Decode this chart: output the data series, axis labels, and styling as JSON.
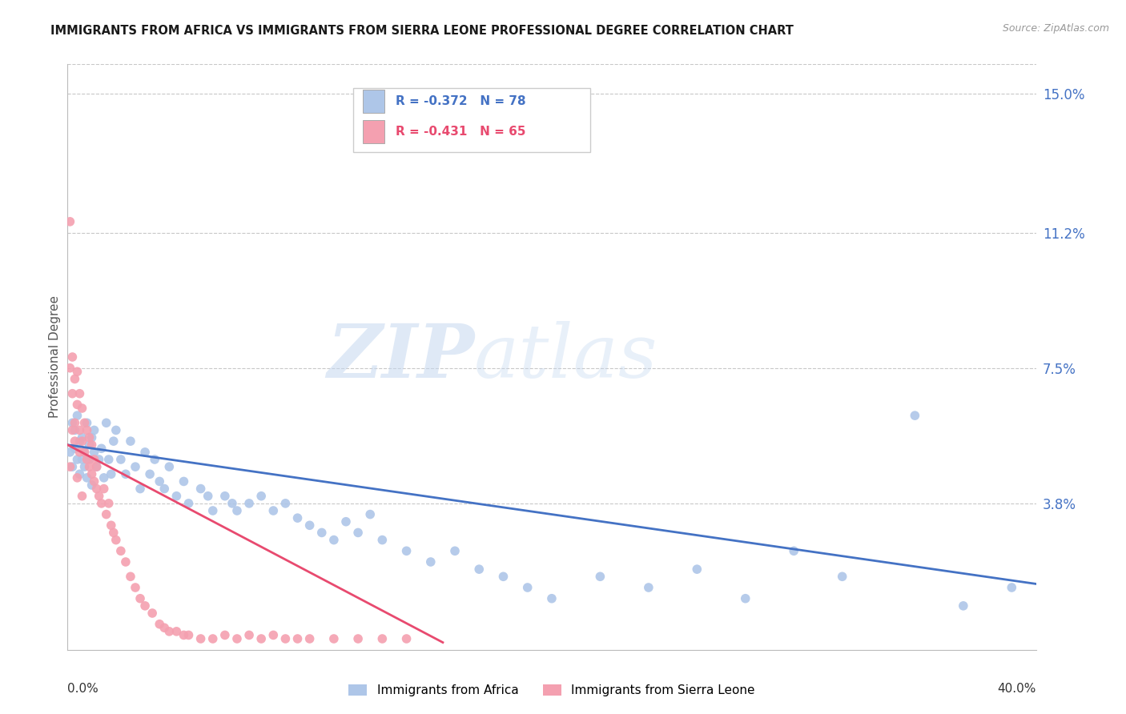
{
  "title": "IMMIGRANTS FROM AFRICA VS IMMIGRANTS FROM SIERRA LEONE PROFESSIONAL DEGREE CORRELATION CHART",
  "source": "Source: ZipAtlas.com",
  "ylabel": "Professional Degree",
  "right_ytick_labels": [
    "15.0%",
    "11.2%",
    "7.5%",
    "3.8%"
  ],
  "right_ytick_values": [
    0.15,
    0.112,
    0.075,
    0.038
  ],
  "xlim": [
    0.0,
    0.4
  ],
  "ylim": [
    -0.002,
    0.158
  ],
  "color_africa": "#aec6e8",
  "color_sierraleone": "#f4a0b0",
  "trendline_color_africa": "#4472c4",
  "trendline_color_sierraleone": "#e84a6f",
  "background_color": "#ffffff",
  "grid_color": "#c8c8c8",
  "right_axis_label_color": "#4472c4",
  "title_color": "#1a1a1a",
  "watermark_zip": "ZIP",
  "watermark_atlas": "atlas",
  "africa_x": [
    0.001,
    0.002,
    0.002,
    0.003,
    0.003,
    0.004,
    0.004,
    0.005,
    0.005,
    0.006,
    0.006,
    0.007,
    0.007,
    0.008,
    0.008,
    0.009,
    0.009,
    0.01,
    0.01,
    0.011,
    0.011,
    0.012,
    0.013,
    0.014,
    0.015,
    0.016,
    0.017,
    0.018,
    0.019,
    0.02,
    0.022,
    0.024,
    0.026,
    0.028,
    0.03,
    0.032,
    0.034,
    0.036,
    0.038,
    0.04,
    0.042,
    0.045,
    0.048,
    0.05,
    0.055,
    0.058,
    0.06,
    0.065,
    0.068,
    0.07,
    0.075,
    0.08,
    0.085,
    0.09,
    0.095,
    0.1,
    0.105,
    0.11,
    0.115,
    0.12,
    0.125,
    0.13,
    0.14,
    0.15,
    0.16,
    0.17,
    0.18,
    0.19,
    0.2,
    0.22,
    0.24,
    0.26,
    0.28,
    0.3,
    0.32,
    0.35,
    0.37,
    0.39
  ],
  "africa_y": [
    0.052,
    0.048,
    0.06,
    0.053,
    0.058,
    0.05,
    0.062,
    0.046,
    0.055,
    0.05,
    0.056,
    0.052,
    0.048,
    0.06,
    0.045,
    0.054,
    0.05,
    0.056,
    0.043,
    0.052,
    0.058,
    0.048,
    0.05,
    0.053,
    0.045,
    0.06,
    0.05,
    0.046,
    0.055,
    0.058,
    0.05,
    0.046,
    0.055,
    0.048,
    0.042,
    0.052,
    0.046,
    0.05,
    0.044,
    0.042,
    0.048,
    0.04,
    0.044,
    0.038,
    0.042,
    0.04,
    0.036,
    0.04,
    0.038,
    0.036,
    0.038,
    0.04,
    0.036,
    0.038,
    0.034,
    0.032,
    0.03,
    0.028,
    0.033,
    0.03,
    0.035,
    0.028,
    0.025,
    0.022,
    0.025,
    0.02,
    0.018,
    0.015,
    0.012,
    0.018,
    0.015,
    0.02,
    0.012,
    0.025,
    0.018,
    0.062,
    0.01,
    0.015
  ],
  "sl_x": [
    0.001,
    0.001,
    0.002,
    0.002,
    0.003,
    0.003,
    0.004,
    0.004,
    0.005,
    0.005,
    0.006,
    0.006,
    0.007,
    0.007,
    0.008,
    0.008,
    0.009,
    0.009,
    0.01,
    0.01,
    0.011,
    0.011,
    0.012,
    0.012,
    0.013,
    0.014,
    0.015,
    0.016,
    0.017,
    0.018,
    0.019,
    0.02,
    0.022,
    0.024,
    0.026,
    0.028,
    0.03,
    0.032,
    0.035,
    0.038,
    0.04,
    0.042,
    0.045,
    0.048,
    0.05,
    0.055,
    0.06,
    0.065,
    0.07,
    0.075,
    0.08,
    0.085,
    0.09,
    0.095,
    0.1,
    0.11,
    0.12,
    0.13,
    0.14,
    0.001,
    0.002,
    0.003,
    0.004,
    0.005,
    0.006
  ],
  "sl_y": [
    0.115,
    0.075,
    0.068,
    0.078,
    0.06,
    0.072,
    0.065,
    0.074,
    0.058,
    0.068,
    0.055,
    0.064,
    0.052,
    0.06,
    0.05,
    0.058,
    0.048,
    0.056,
    0.046,
    0.054,
    0.044,
    0.05,
    0.042,
    0.048,
    0.04,
    0.038,
    0.042,
    0.035,
    0.038,
    0.032,
    0.03,
    0.028,
    0.025,
    0.022,
    0.018,
    0.015,
    0.012,
    0.01,
    0.008,
    0.005,
    0.004,
    0.003,
    0.003,
    0.002,
    0.002,
    0.001,
    0.001,
    0.002,
    0.001,
    0.002,
    0.001,
    0.002,
    0.001,
    0.001,
    0.001,
    0.001,
    0.001,
    0.001,
    0.001,
    0.048,
    0.058,
    0.055,
    0.045,
    0.052,
    0.04
  ],
  "africa_trend_x": [
    0.0,
    0.4
  ],
  "africa_trend_y": [
    0.054,
    0.016
  ],
  "sl_trend_x": [
    0.0,
    0.155
  ],
  "sl_trend_y": [
    0.054,
    0.0
  ]
}
